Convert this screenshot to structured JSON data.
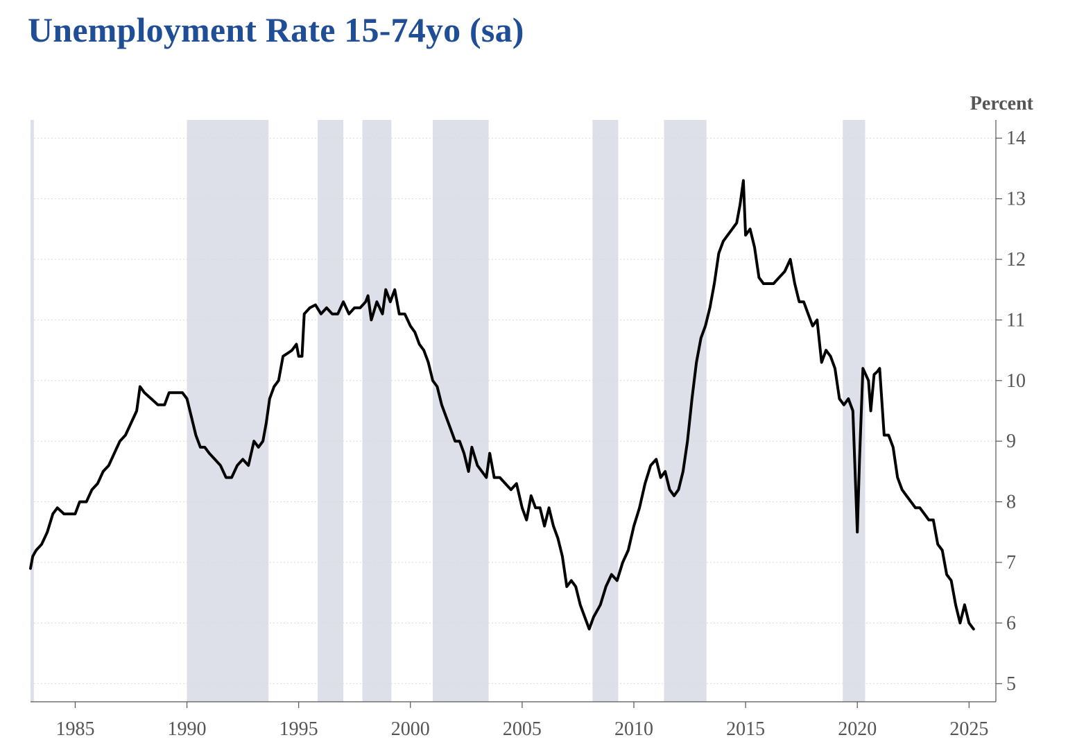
{
  "title": "Unemployment Rate 15-74yo (sa)",
  "colors": {
    "title": "#1f4e96",
    "line": "#000000",
    "shade": "#dde0e8",
    "grid": "#d9d9d9",
    "axis": "#555555"
  },
  "chart_data": {
    "type": "line",
    "title": "Unemployment Rate 15-74yo (sa)",
    "ylabel": "Percent",
    "xlabel": "",
    "xlim": [
      1983.0,
      2026.2
    ],
    "ylim": [
      4.7,
      14.3
    ],
    "yticks": [
      5,
      6,
      7,
      8,
      9,
      10,
      11,
      12,
      13,
      14
    ],
    "ytick_labels": [
      "5",
      "6",
      "7",
      "8",
      "9",
      "10",
      "11",
      "12",
      "13",
      "14"
    ],
    "xticks": [
      1985,
      1990,
      1995,
      2000,
      2005,
      2010,
      2015,
      2020,
      2025
    ],
    "xtick_labels": [
      "1985",
      "1990",
      "1995",
      "2000",
      "2005",
      "2010",
      "2015",
      "2020",
      "2025"
    ],
    "grid": true,
    "shaded_periods": [
      [
        1983.0,
        1983.15
      ],
      [
        1990.0,
        1993.65
      ],
      [
        1995.85,
        1997.0
      ],
      [
        1997.85,
        1999.15
      ],
      [
        2001.0,
        2003.5
      ],
      [
        2008.15,
        2009.3
      ],
      [
        2011.35,
        2013.25
      ],
      [
        2019.35,
        2020.35
      ]
    ],
    "series": [
      {
        "name": "Unemployment Rate 15-74yo (sa)",
        "points": [
          [
            1983.0,
            6.9
          ],
          [
            1983.1,
            7.1
          ],
          [
            1983.25,
            7.2
          ],
          [
            1983.5,
            7.3
          ],
          [
            1983.75,
            7.5
          ],
          [
            1984.0,
            7.8
          ],
          [
            1984.2,
            7.9
          ],
          [
            1984.5,
            7.8
          ],
          [
            1985.0,
            7.8
          ],
          [
            1985.2,
            8.0
          ],
          [
            1985.5,
            8.0
          ],
          [
            1985.75,
            8.2
          ],
          [
            1986.0,
            8.3
          ],
          [
            1986.25,
            8.5
          ],
          [
            1986.5,
            8.6
          ],
          [
            1986.75,
            8.8
          ],
          [
            1987.0,
            9.0
          ],
          [
            1987.25,
            9.1
          ],
          [
            1987.5,
            9.3
          ],
          [
            1987.75,
            9.5
          ],
          [
            1987.9,
            9.9
          ],
          [
            1988.1,
            9.8
          ],
          [
            1988.4,
            9.7
          ],
          [
            1988.7,
            9.6
          ],
          [
            1989.0,
            9.6
          ],
          [
            1989.2,
            9.8
          ],
          [
            1989.5,
            9.8
          ],
          [
            1989.8,
            9.8
          ],
          [
            1990.0,
            9.7
          ],
          [
            1990.2,
            9.4
          ],
          [
            1990.4,
            9.1
          ],
          [
            1990.6,
            8.9
          ],
          [
            1990.8,
            8.9
          ],
          [
            1991.0,
            8.8
          ],
          [
            1991.25,
            8.7
          ],
          [
            1991.5,
            8.6
          ],
          [
            1991.75,
            8.4
          ],
          [
            1992.0,
            8.4
          ],
          [
            1992.25,
            8.6
          ],
          [
            1992.5,
            8.7
          ],
          [
            1992.75,
            8.6
          ],
          [
            1993.0,
            9.0
          ],
          [
            1993.2,
            8.9
          ],
          [
            1993.4,
            9.0
          ],
          [
            1993.55,
            9.3
          ],
          [
            1993.7,
            9.7
          ],
          [
            1993.9,
            9.9
          ],
          [
            1994.1,
            10.0
          ],
          [
            1994.3,
            10.4
          ],
          [
            1994.5,
            10.45
          ],
          [
            1994.7,
            10.5
          ],
          [
            1994.9,
            10.6
          ],
          [
            1995.0,
            10.4
          ],
          [
            1995.15,
            10.4
          ],
          [
            1995.25,
            11.1
          ],
          [
            1995.5,
            11.2
          ],
          [
            1995.75,
            11.25
          ],
          [
            1996.0,
            11.1
          ],
          [
            1996.25,
            11.2
          ],
          [
            1996.5,
            11.1
          ],
          [
            1996.75,
            11.1
          ],
          [
            1997.0,
            11.3
          ],
          [
            1997.25,
            11.1
          ],
          [
            1997.5,
            11.2
          ],
          [
            1997.75,
            11.2
          ],
          [
            1998.0,
            11.3
          ],
          [
            1998.1,
            11.4
          ],
          [
            1998.25,
            11.0
          ],
          [
            1998.5,
            11.3
          ],
          [
            1998.75,
            11.1
          ],
          [
            1998.9,
            11.5
          ],
          [
            1999.1,
            11.3
          ],
          [
            1999.3,
            11.5
          ],
          [
            1999.5,
            11.1
          ],
          [
            1999.75,
            11.1
          ],
          [
            2000.0,
            10.9
          ],
          [
            2000.2,
            10.8
          ],
          [
            2000.4,
            10.6
          ],
          [
            2000.6,
            10.5
          ],
          [
            2000.8,
            10.3
          ],
          [
            2001.0,
            10.0
          ],
          [
            2001.2,
            9.9
          ],
          [
            2001.4,
            9.6
          ],
          [
            2001.6,
            9.4
          ],
          [
            2001.8,
            9.2
          ],
          [
            2002.0,
            9.0
          ],
          [
            2002.2,
            9.0
          ],
          [
            2002.4,
            8.8
          ],
          [
            2002.6,
            8.5
          ],
          [
            2002.75,
            8.9
          ],
          [
            2003.0,
            8.6
          ],
          [
            2003.2,
            8.5
          ],
          [
            2003.4,
            8.4
          ],
          [
            2003.55,
            8.8
          ],
          [
            2003.75,
            8.4
          ],
          [
            2004.0,
            8.4
          ],
          [
            2004.25,
            8.3
          ],
          [
            2004.5,
            8.2
          ],
          [
            2004.75,
            8.3
          ],
          [
            2005.0,
            7.9
          ],
          [
            2005.2,
            7.7
          ],
          [
            2005.4,
            8.1
          ],
          [
            2005.6,
            7.9
          ],
          [
            2005.8,
            7.9
          ],
          [
            2006.0,
            7.6
          ],
          [
            2006.2,
            7.9
          ],
          [
            2006.4,
            7.6
          ],
          [
            2006.6,
            7.4
          ],
          [
            2006.8,
            7.1
          ],
          [
            2007.0,
            6.6
          ],
          [
            2007.2,
            6.7
          ],
          [
            2007.4,
            6.6
          ],
          [
            2007.6,
            6.3
          ],
          [
            2007.8,
            6.1
          ],
          [
            2008.0,
            5.9
          ],
          [
            2008.2,
            6.1
          ],
          [
            2008.5,
            6.3
          ],
          [
            2008.75,
            6.6
          ],
          [
            2009.0,
            6.8
          ],
          [
            2009.25,
            6.7
          ],
          [
            2009.5,
            7.0
          ],
          [
            2009.75,
            7.2
          ],
          [
            2010.0,
            7.6
          ],
          [
            2010.25,
            7.9
          ],
          [
            2010.5,
            8.3
          ],
          [
            2010.75,
            8.6
          ],
          [
            2011.0,
            8.7
          ],
          [
            2011.2,
            8.4
          ],
          [
            2011.4,
            8.5
          ],
          [
            2011.6,
            8.2
          ],
          [
            2011.8,
            8.1
          ],
          [
            2012.0,
            8.2
          ],
          [
            2012.2,
            8.5
          ],
          [
            2012.4,
            9.0
          ],
          [
            2012.6,
            9.7
          ],
          [
            2012.8,
            10.3
          ],
          [
            2013.0,
            10.7
          ],
          [
            2013.2,
            10.9
          ],
          [
            2013.4,
            11.2
          ],
          [
            2013.6,
            11.6
          ],
          [
            2013.8,
            12.1
          ],
          [
            2014.0,
            12.3
          ],
          [
            2014.2,
            12.4
          ],
          [
            2014.4,
            12.5
          ],
          [
            2014.6,
            12.6
          ],
          [
            2014.75,
            12.9
          ],
          [
            2014.9,
            13.3
          ],
          [
            2015.0,
            12.4
          ],
          [
            2015.2,
            12.5
          ],
          [
            2015.4,
            12.2
          ],
          [
            2015.6,
            11.7
          ],
          [
            2015.8,
            11.6
          ],
          [
            2016.0,
            11.6
          ],
          [
            2016.25,
            11.6
          ],
          [
            2016.5,
            11.7
          ],
          [
            2016.75,
            11.8
          ],
          [
            2017.0,
            12.0
          ],
          [
            2017.2,
            11.6
          ],
          [
            2017.4,
            11.3
          ],
          [
            2017.6,
            11.3
          ],
          [
            2017.8,
            11.1
          ],
          [
            2018.0,
            10.9
          ],
          [
            2018.2,
            11.0
          ],
          [
            2018.4,
            10.3
          ],
          [
            2018.6,
            10.5
          ],
          [
            2018.8,
            10.4
          ],
          [
            2019.0,
            10.2
          ],
          [
            2019.2,
            9.7
          ],
          [
            2019.4,
            9.6
          ],
          [
            2019.6,
            9.7
          ],
          [
            2019.8,
            9.5
          ],
          [
            2020.0,
            7.5
          ],
          [
            2020.1,
            8.7
          ],
          [
            2020.25,
            10.2
          ],
          [
            2020.5,
            10.0
          ],
          [
            2020.6,
            9.5
          ],
          [
            2020.75,
            10.1
          ],
          [
            2020.9,
            10.15
          ],
          [
            2021.0,
            10.2
          ],
          [
            2021.2,
            9.1
          ],
          [
            2021.4,
            9.1
          ],
          [
            2021.6,
            8.9
          ],
          [
            2021.8,
            8.4
          ],
          [
            2022.0,
            8.2
          ],
          [
            2022.2,
            8.1
          ],
          [
            2022.4,
            8.0
          ],
          [
            2022.6,
            7.9
          ],
          [
            2022.8,
            7.9
          ],
          [
            2023.0,
            7.8
          ],
          [
            2023.2,
            7.7
          ],
          [
            2023.4,
            7.7
          ],
          [
            2023.6,
            7.3
          ],
          [
            2023.8,
            7.2
          ],
          [
            2024.0,
            6.8
          ],
          [
            2024.2,
            6.7
          ],
          [
            2024.4,
            6.3
          ],
          [
            2024.6,
            6.0
          ],
          [
            2024.8,
            6.3
          ],
          [
            2025.0,
            6.0
          ],
          [
            2025.2,
            5.9
          ]
        ]
      }
    ]
  }
}
